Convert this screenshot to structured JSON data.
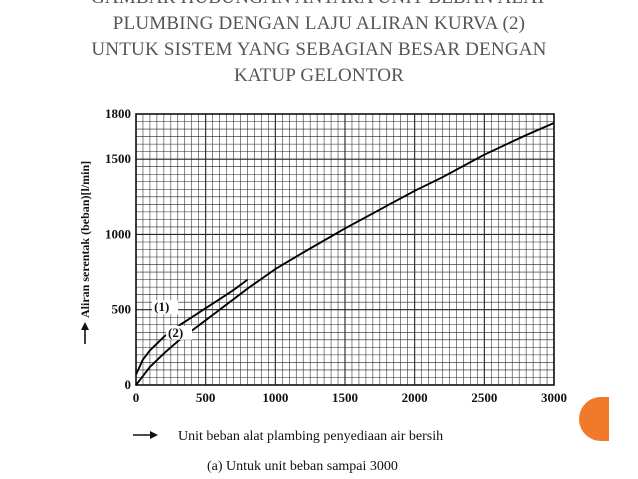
{
  "slide": {
    "title_lines": [
      "GAMBAR HUBUNGAN ANTARA UNIT BEBAN ALAT",
      "PLUMBING DENGAN LAJU ALIRAN KURVA (2)",
      "UNTUK SISTEM YANG SEBAGIAN BESAR DENGAN",
      "KATUP GELONTOR"
    ],
    "accent_color": "#f07a2a"
  },
  "chart_data": {
    "type": "line",
    "xlabel": "Unit beban alat plambing penyediaan air bersih",
    "ylabel": "Aliran serentak (beban)[l/min]",
    "caption": "(a) Untuk unit beban sampai 3000",
    "xlim": [
      0,
      3000
    ],
    "ylim": [
      0,
      1800
    ],
    "x_ticks": [
      0,
      500,
      1000,
      1500,
      2000,
      2500,
      3000
    ],
    "y_ticks": [
      0,
      500,
      1000,
      1500,
      1800
    ],
    "grid": true,
    "series": [
      {
        "name": "(1)",
        "x": [
          0,
          50,
          100,
          200,
          300,
          400,
          500,
          600,
          700,
          800
        ],
        "y": [
          70,
          170,
          230,
          320,
          390,
          450,
          510,
          570,
          630,
          700
        ]
      },
      {
        "name": "(2)",
        "x": [
          0,
          100,
          200,
          300,
          400,
          500,
          600,
          700,
          800,
          1000,
          1200,
          1500,
          1800,
          2000,
          2200,
          2500,
          2800,
          3000
        ],
        "y": [
          0,
          120,
          210,
          290,
          360,
          430,
          500,
          570,
          640,
          770,
          880,
          1040,
          1190,
          1290,
          1380,
          1530,
          1660,
          1740
        ]
      }
    ]
  }
}
